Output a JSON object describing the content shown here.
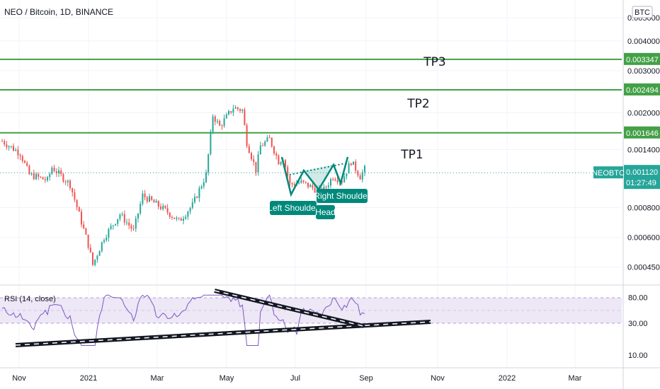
{
  "chart_data": {
    "type": "candlestick",
    "title": "NEO / Bitcoin, 1D, BINANCE",
    "currency": "BTC",
    "price_axis_ticks": [
      "0.005000",
      "0.004000",
      "0.003000",
      "0.002000",
      "0.001400",
      "0.000800",
      "0.000600",
      "0.000450"
    ],
    "time_axis_labels": [
      "Nov",
      "2021",
      "Mar",
      "May",
      "Jul",
      "Sep",
      "Nov",
      "2022",
      "Mar"
    ],
    "symbol": "NEOBTC",
    "last_price": "0.001120",
    "countdown": "01:27:49",
    "last_price_value": 0.00112,
    "targets": [
      {
        "name": "TP1",
        "value": "0.001646",
        "price": 0.001646
      },
      {
        "name": "TP2",
        "value": "0.002494",
        "price": 0.002494
      },
      {
        "name": "TP3",
        "value": "0.003347",
        "price": 0.003347
      }
    ],
    "pattern_labels": {
      "left": "Left Shoulder",
      "head": "Head",
      "right": "Right Shoulder"
    },
    "colors": {
      "up": "#26a69a",
      "down": "#ef5350",
      "target_line": "#43a047",
      "pattern": "#00897b",
      "rsi_line": "#7e57c2",
      "rsi_band": "#ede7f6"
    },
    "rsi": {
      "label": "RSI (14, close)",
      "ticks": [
        "80.00",
        "30.00",
        "10.00"
      ],
      "upper": 70,
      "lower": 30,
      "trendlines": "converging"
    }
  }
}
